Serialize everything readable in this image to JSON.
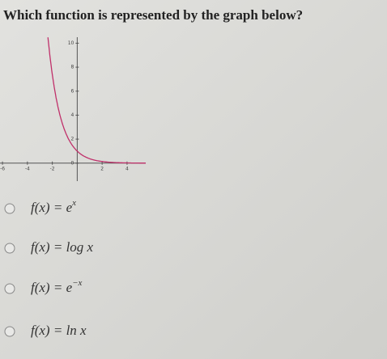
{
  "question": "Which function is represented by the graph below?",
  "graph": {
    "xlim": [
      -6.2,
      5.5
    ],
    "ylim": [
      -1.5,
      10.5
    ],
    "xticks": [
      -6,
      -4,
      -2,
      2,
      4
    ],
    "yticks": [
      0,
      2,
      4,
      6,
      8,
      10
    ]
  },
  "options": [
    {
      "text": "f(x) = e",
      "sup": "x"
    },
    {
      "text": "f(x) = log x"
    },
    {
      "text": "f(x) = e",
      "sup": "−x"
    },
    {
      "text": "f(x) = ln x"
    }
  ]
}
